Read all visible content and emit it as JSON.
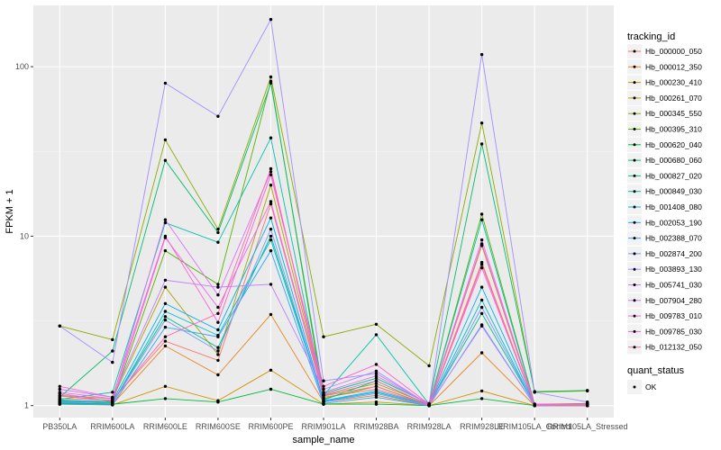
{
  "chart_data": {
    "type": "line",
    "xlabel": "sample_name",
    "ylabel": "FPKM + 1",
    "yscale": "log10",
    "ylim": [
      0.85,
      230
    ],
    "y_ticks": [
      1,
      10,
      100
    ],
    "y_tick_labels": [
      "1",
      "10",
      "100"
    ],
    "categories": [
      "PB350LA",
      "RRIM600LA",
      "RRIM600LE",
      "RRIM600SE",
      "RRIM600PE",
      "RRIM901LA",
      "RRIM928BA",
      "RRIM928LA",
      "RRIM928LE",
      "RRIM105LA_Control",
      "RRIM105LA_Stressed"
    ],
    "tick_labels": [
      "PB350LA",
      "RRIM600LA",
      "RRIM600LE",
      "RRIM600SE",
      "RRIM600PE",
      "RRIM901LA",
      "RRIM928BA",
      "RRIM928LA",
      "RRIM928LE",
      "RRIM105LA_Control",
      "RRIM105LA_Stressed"
    ],
    "grid": true,
    "legend_position": "right",
    "legend_color_title": "tracking_id",
    "legend_shape_title": "quant_status",
    "legend_shape_entries": [
      "OK"
    ],
    "series": [
      {
        "name": "Hb_000000_050",
        "color": "#F8766D",
        "values": [
          1.1,
          1.08,
          2.4,
          1.85,
          15.5,
          1.12,
          1.25,
          1.01,
          7.0,
          1.0,
          1.02
        ]
      },
      {
        "name": "Hb_000012_350",
        "color": "#E7851E",
        "values": [
          1.05,
          1.02,
          2.25,
          1.52,
          3.45,
          1.05,
          1.15,
          1.0,
          2.05,
          1.0,
          1.0
        ]
      },
      {
        "name": "Hb_000230_410",
        "color": "#D09400",
        "values": [
          1.02,
          1.01,
          1.3,
          1.07,
          1.62,
          1.02,
          1.05,
          1.0,
          1.22,
          1.0,
          1.0
        ]
      },
      {
        "name": "Hb_000261_070",
        "color": "#B2A100",
        "values": [
          1.15,
          1.1,
          5.0,
          2.0,
          20.0,
          1.15,
          1.35,
          1.02,
          8.8,
          1.01,
          1.03
        ]
      },
      {
        "name": "Hb_000345_550",
        "color": "#8BAB00",
        "values": [
          2.95,
          2.45,
          37.0,
          11.0,
          87.0,
          2.55,
          3.02,
          1.72,
          46.5,
          1.2,
          1.22
        ]
      },
      {
        "name": "Hb_000395_310",
        "color": "#55B400",
        "values": [
          1.08,
          1.05,
          8.2,
          5.2,
          82.0,
          1.1,
          1.3,
          1.01,
          13.5,
          1.02,
          1.03
        ]
      },
      {
        "name": "Hb_000620_040",
        "color": "#00BA38",
        "values": [
          1.03,
          1.02,
          1.1,
          1.05,
          1.25,
          1.02,
          1.02,
          1.0,
          1.1,
          1.0,
          1.0
        ]
      },
      {
        "name": "Hb_000680_060",
        "color": "#00BE6C",
        "values": [
          1.12,
          2.1,
          28.0,
          10.5,
          80.0,
          1.18,
          1.45,
          1.03,
          35.0,
          1.21,
          1.23
        ]
      },
      {
        "name": "Hb_000827_020",
        "color": "#00C08E",
        "values": [
          1.06,
          1.04,
          3.35,
          2.2,
          10.0,
          1.08,
          1.4,
          1.01,
          3.5,
          1.01,
          1.0
        ]
      },
      {
        "name": "Hb_000849_030",
        "color": "#00C0AF",
        "values": [
          1.09,
          1.2,
          12.0,
          9.2,
          38.0,
          1.15,
          2.62,
          1.02,
          12.5,
          1.02,
          1.01
        ]
      },
      {
        "name": "Hb_001408_080",
        "color": "#00BCD8",
        "values": [
          1.04,
          1.03,
          3.6,
          2.6,
          9.5,
          1.06,
          1.2,
          1.0,
          4.2,
          1.0,
          1.0
        ]
      },
      {
        "name": "Hb_002053_190",
        "color": "#00B0F6",
        "values": [
          1.07,
          1.06,
          4.0,
          2.8,
          12.8,
          1.07,
          1.22,
          1.01,
          5.0,
          1.01,
          1.01
        ]
      },
      {
        "name": "Hb_002388_070",
        "color": "#35A2FF",
        "values": [
          1.02,
          1.01,
          2.9,
          2.55,
          8.2,
          1.03,
          1.12,
          1.0,
          3.0,
          1.0,
          1.0
        ]
      },
      {
        "name": "Hb_002874_200",
        "color": "#7F96FF",
        "values": [
          1.05,
          1.03,
          3.2,
          2.1,
          11.0,
          1.05,
          1.18,
          1.0,
          3.8,
          1.01,
          1.01
        ]
      },
      {
        "name": "Hb_003893_130",
        "color": "#A38DFF",
        "values": [
          2.95,
          1.8,
          80.0,
          51.0,
          190.0,
          1.4,
          1.55,
          1.02,
          118.0,
          1.2,
          1.05
        ]
      },
      {
        "name": "Hb_005741_030",
        "color": "#BF80FF",
        "values": [
          1.25,
          1.12,
          5.5,
          5.0,
          5.2,
          1.25,
          1.6,
          1.01,
          2.95,
          1.0,
          1.0
        ]
      },
      {
        "name": "Hb_007904_280",
        "color": "#DD71FA",
        "values": [
          1.2,
          1.1,
          12.5,
          4.5,
          24.0,
          1.2,
          1.5,
          1.02,
          9.5,
          1.02,
          1.01
        ]
      },
      {
        "name": "Hb_009783_010",
        "color": "#F066E8",
        "values": [
          1.18,
          1.06,
          9.8,
          3.8,
          16.0,
          1.16,
          1.4,
          1.01,
          6.5,
          1.01,
          1.0
        ]
      },
      {
        "name": "Hb_009785_030",
        "color": "#FD61D1",
        "values": [
          1.3,
          1.12,
          10.0,
          3.1,
          23.0,
          1.3,
          1.75,
          1.02,
          9.0,
          1.02,
          1.02
        ]
      },
      {
        "name": "Hb_012132_050",
        "color": "#FF67A4",
        "values": [
          1.14,
          1.07,
          2.55,
          3.5,
          25.0,
          1.14,
          1.3,
          1.0,
          6.8,
          1.01,
          1.0
        ]
      }
    ]
  }
}
